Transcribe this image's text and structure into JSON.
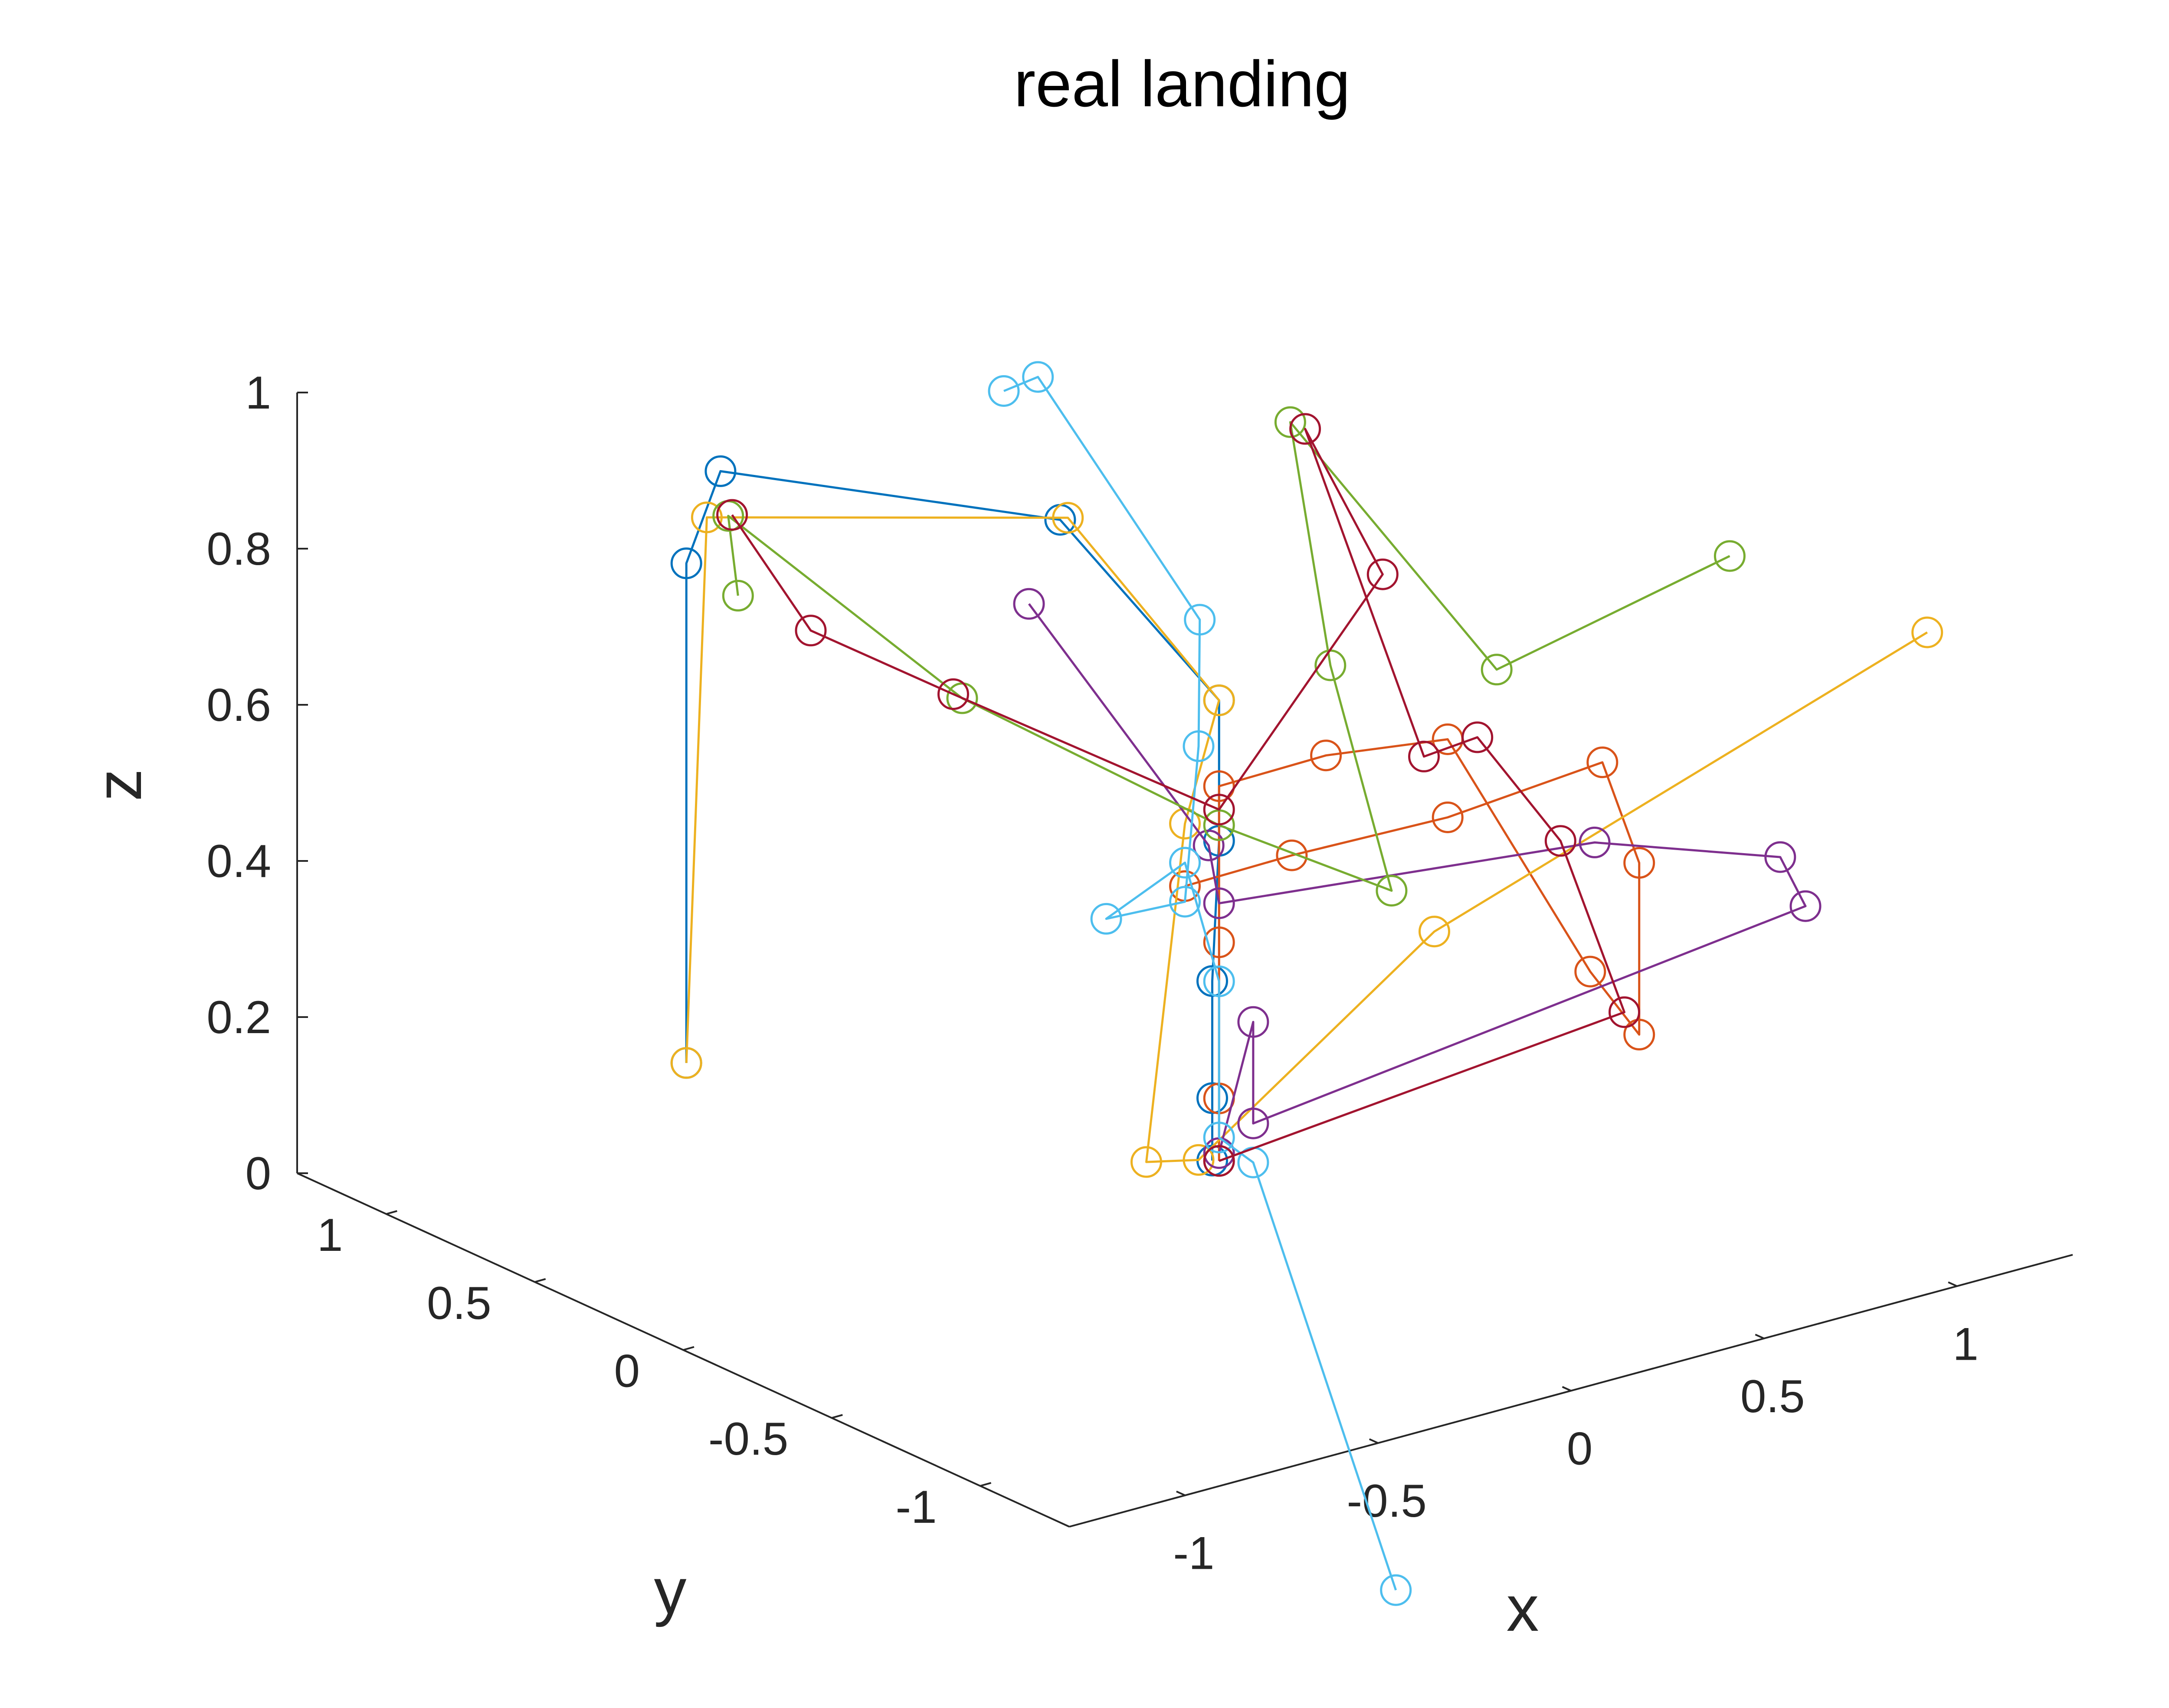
{
  "chart_data": {
    "type": "line3d",
    "title": "real landing",
    "xlabel": "x",
    "ylabel": "y",
    "zlabel": "z",
    "xlim": [
      -1.3,
      1.3
    ],
    "ylim": [
      -1.3,
      1.3
    ],
    "zlim": [
      0,
      1
    ],
    "xticks": [
      -1,
      -0.5,
      0,
      0.5,
      1
    ],
    "yticks": [
      -1,
      -0.5,
      0,
      0.5,
      1
    ],
    "zticks": [
      0,
      0.2,
      0.4,
      0.6,
      0.8,
      1
    ],
    "xtick_labels": [
      "-1",
      "-0.5",
      "0",
      "0.5",
      "1"
    ],
    "ytick_labels": [
      "-1",
      "-0.5",
      "0",
      "0.5",
      "1"
    ],
    "ztick_labels": [
      "0",
      "0.2",
      "0.4",
      "0.6",
      "0.8",
      "1"
    ],
    "grid": false,
    "marker": "circle",
    "series": [
      {
        "color": "#0072BD",
        "points": [
          [
            -0.33,
            1.25,
            0.02
          ],
          [
            -0.33,
            1.25,
            0.66
          ],
          [
            -0.28,
            1.2,
            0.78
          ],
          [
            0.1,
            0.55,
            0.78
          ],
          [
            0.05,
            -0.05,
            0.66
          ],
          [
            0.05,
            -0.05,
            0.48
          ],
          [
            0.04,
            -0.04,
            0.3
          ],
          [
            0.04,
            -0.04,
            0.15
          ],
          [
            0.04,
            -0.04,
            0.07
          ]
        ]
      },
      {
        "color": "#D95319",
        "points": [
          [
            0.0,
            0.0,
            0.42
          ],
          [
            0.2,
            -0.1,
            0.45
          ],
          [
            0.45,
            -0.3,
            0.5
          ],
          [
            0.62,
            -0.6,
            0.6
          ],
          [
            0.6,
            -0.75,
            0.5
          ],
          [
            0.6,
            -0.75,
            0.28
          ],
          [
            0.55,
            -0.65,
            0.35
          ],
          [
            0.45,
            -0.3,
            0.6
          ],
          [
            0.25,
            -0.15,
            0.58
          ],
          [
            0.05,
            -0.05,
            0.55
          ],
          [
            0.05,
            -0.05,
            0.35
          ],
          [
            0.05,
            -0.05,
            0.15
          ],
          [
            0.05,
            -0.05,
            0.07
          ]
        ]
      },
      {
        "color": "#EDB120",
        "points": [
          [
            -0.33,
            1.25,
            0.02
          ],
          [
            -0.3,
            1.22,
            0.72
          ],
          [
            0.12,
            0.55,
            0.78
          ],
          [
            0.05,
            -0.05,
            0.66
          ],
          [
            0.0,
            0.0,
            0.5
          ],
          [
            -0.1,
            0.0,
            0.08
          ],
          [
            0.02,
            -0.02,
            0.07
          ],
          [
            0.3,
            -0.45,
            0.4
          ],
          [
            1.0,
            -1.2,
            0.82
          ]
        ]
      },
      {
        "color": "#7E2F8E",
        "points": [
          [
            0.25,
            0.85,
            0.6
          ],
          [
            0.1,
            0.05,
            0.45
          ],
          [
            0.05,
            -0.05,
            0.4
          ],
          [
            0.6,
            -0.6,
            0.5
          ],
          [
            0.85,
            -0.9,
            0.5
          ],
          [
            0.8,
            -1.05,
            0.47
          ],
          [
            0.1,
            -0.1,
            0.12
          ],
          [
            0.1,
            -0.1,
            0.25
          ],
          [
            0.05,
            -0.05,
            0.08
          ]
        ]
      },
      {
        "color": "#77AC30",
        "points": [
          [
            -0.25,
            1.18,
            0.62
          ],
          [
            -0.26,
            1.2,
            0.72
          ],
          [
            0.0,
            0.75,
            0.53
          ],
          [
            0.05,
            -0.05,
            0.5
          ],
          [
            0.32,
            -0.28,
            0.42
          ],
          [
            0.3,
            -0.1,
            0.68
          ],
          [
            0.35,
            0.1,
            0.95
          ],
          [
            0.5,
            -0.4,
            0.7
          ],
          [
            0.95,
            -0.6,
            0.82
          ]
        ]
      },
      {
        "color": "#4DBEEE",
        "points": [
          [
            -0.2,
            0.35,
            1.02
          ],
          [
            -0.15,
            0.3,
            1.04
          ],
          [
            0.0,
            -0.05,
            0.77
          ],
          [
            0.02,
            -0.02,
            0.6
          ],
          [
            0.0,
            0.0,
            0.4
          ],
          [
            -0.05,
            0.2,
            0.35
          ],
          [
            0.0,
            0.0,
            0.45
          ],
          [
            0.05,
            -0.05,
            0.3
          ],
          [
            0.05,
            -0.05,
            0.1
          ],
          [
            0.1,
            -0.1,
            0.07
          ],
          [
            -0.3,
            -1.1,
            -0.25
          ]
        ]
      },
      {
        "color": "#A2142F",
        "points": [
          [
            -0.25,
            1.2,
            0.72
          ],
          [
            -0.2,
            1.0,
            0.6
          ],
          [
            0.0,
            0.78,
            0.53
          ],
          [
            0.05,
            -0.05,
            0.52
          ],
          [
            0.32,
            -0.25,
            0.82
          ],
          [
            0.35,
            0.05,
            0.95
          ],
          [
            0.35,
            -0.35,
            0.6
          ],
          [
            0.45,
            -0.4,
            0.62
          ],
          [
            0.55,
            -0.55,
            0.5
          ],
          [
            0.6,
            -0.7,
            0.3
          ],
          [
            0.05,
            -0.05,
            0.07
          ]
        ]
      }
    ]
  }
}
